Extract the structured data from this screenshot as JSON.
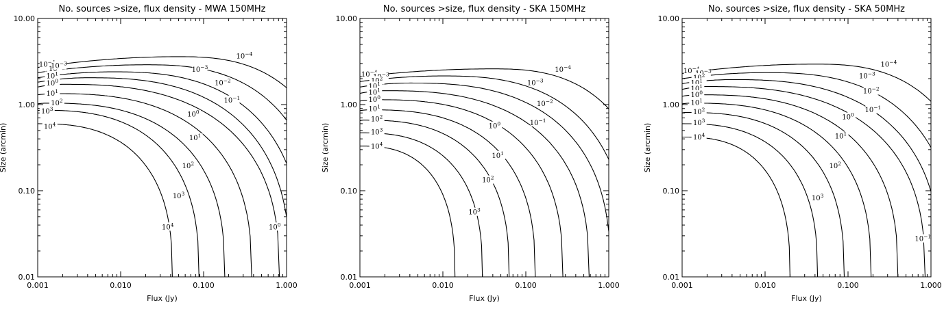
{
  "chart_data": [
    {
      "type": "contour",
      "title": "No. sources >size, flux density - MWA 150MHz",
      "xlabel": "Flux (Jy)",
      "ylabel": "Size (arcmin)",
      "x_scale": "log",
      "y_scale": "log",
      "xlim": [
        0.001,
        1.0
      ],
      "ylim": [
        0.01,
        10.0
      ],
      "x_ticks": [
        "0.001",
        "0.010",
        "0.100",
        "1.000"
      ],
      "y_ticks": [
        "0.01",
        "0.10",
        "1.00",
        "10.00"
      ],
      "contours": [
        {
          "level": "10^4",
          "s_left": 0.6,
          "s_max": 0.6,
          "s_peak": 0.001,
          "s_right": 0.042
        },
        {
          "level": "10^3",
          "s_left": 0.85,
          "s_max": 0.86,
          "s_peak": 0.0011,
          "s_right": 0.088
        },
        {
          "level": "10^2",
          "s_left": 1.02,
          "s_max": 1.04,
          "s_peak": 0.0013,
          "s_right": 0.18
        },
        {
          "level": "10^1",
          "s_left": 1.3,
          "s_max": 1.34,
          "s_peak": 0.0016,
          "s_right": 0.38
        },
        {
          "level": "10^0",
          "s_left": 1.6,
          "s_max": 1.72,
          "s_peak": 0.002,
          "s_right": 0.82
        },
        {
          "level": "10^-1",
          "s_left": 1.82,
          "s_max": 2.05,
          "s_peak": 0.004,
          "s_right": 1.1
        },
        {
          "level": "10^-2",
          "s_left": 2.05,
          "s_max": 2.4,
          "s_peak": 0.008,
          "s_right": 1.6
        },
        {
          "level": "10^-3",
          "s_left": 2.35,
          "s_max": 2.9,
          "s_peak": 0.02,
          "s_right": 2.8
        },
        {
          "level": "10^-4",
          "s_left": 2.7,
          "s_max": 3.6,
          "s_peak": 0.05,
          "s_right": 5.0
        }
      ],
      "contour_labels": [
        {
          "text": "10-4",
          "x": 0.0013,
          "y": 2.85,
          "on": 8
        },
        {
          "text": "102",
          "x": 0.0016,
          "y": 2.55,
          "on": 7
        },
        {
          "text": "10-3",
          "x": 0.0018,
          "y": 2.75,
          "on": 7
        },
        {
          "text": "101",
          "x": 0.0015,
          "y": 2.1,
          "on": 6
        },
        {
          "text": "100",
          "x": 0.0015,
          "y": 1.73,
          "on": 4
        },
        {
          "text": "101",
          "x": 0.0015,
          "y": 1.32,
          "on": 3
        },
        {
          "text": "102",
          "x": 0.0017,
          "y": 1.02,
          "on": 2
        },
        {
          "text": "103",
          "x": 0.0013,
          "y": 0.82,
          "on": 1
        },
        {
          "text": "104",
          "x": 0.0014,
          "y": 0.54,
          "on": 0
        },
        {
          "text": "10-4",
          "x": 0.31,
          "y": 3.55,
          "on": 8
        },
        {
          "text": "10-3",
          "x": 0.09,
          "y": 2.5,
          "on": 7
        },
        {
          "text": "10-2",
          "x": 0.17,
          "y": 1.75,
          "on": 6
        },
        {
          "text": "10-1",
          "x": 0.22,
          "y": 1.1,
          "on": 5
        },
        {
          "text": "100",
          "x": 0.075,
          "y": 0.75,
          "on": 4
        },
        {
          "text": "101",
          "x": 0.079,
          "y": 0.4,
          "on": 3
        },
        {
          "text": "102",
          "x": 0.065,
          "y": 0.19,
          "on": 2
        },
        {
          "text": "103",
          "x": 0.05,
          "y": 0.085,
          "on": 1
        },
        {
          "text": "104",
          "x": 0.037,
          "y": 0.037,
          "on": 0
        },
        {
          "text": "100",
          "x": 0.72,
          "y": 0.037,
          "on": 4
        }
      ]
    },
    {
      "type": "contour",
      "title": "No. sources >size, flux density - SKA 150MHz",
      "xlabel": "Flux (Jy)",
      "ylabel": "Size (arcmin)",
      "x_scale": "log",
      "y_scale": "log",
      "xlim": [
        0.001,
        1.0
      ],
      "ylim": [
        0.01,
        10.0
      ],
      "x_ticks": [
        "0.001",
        "0.010",
        "0.100",
        "1.000"
      ],
      "y_ticks": [
        "0.01",
        "0.10",
        "1.00",
        "10.00"
      ],
      "contours": [
        {
          "level": "10^4",
          "s_left": 0.33,
          "s_max": 0.33,
          "s_peak": 0.001,
          "s_right": 0.014
        },
        {
          "level": "10^3",
          "s_left": 0.47,
          "s_max": 0.47,
          "s_peak": 0.001,
          "s_right": 0.03
        },
        {
          "level": "10^2",
          "s_left": 0.65,
          "s_max": 0.66,
          "s_peak": 0.0011,
          "s_right": 0.063
        },
        {
          "level": "10^1",
          "s_left": 0.85,
          "s_max": 0.87,
          "s_peak": 0.0013,
          "s_right": 0.13
        },
        {
          "level": "10^0",
          "s_left": 1.1,
          "s_max": 1.14,
          "s_peak": 0.0016,
          "s_right": 0.28
        },
        {
          "level": "10^-1",
          "s_left": 1.35,
          "s_max": 1.45,
          "s_peak": 0.002,
          "s_right": 0.58
        },
        {
          "level": "10^-2",
          "s_left": 1.6,
          "s_max": 1.78,
          "s_peak": 0.004,
          "s_right": 1.05
        },
        {
          "level": "10^-3",
          "s_left": 1.85,
          "s_max": 2.15,
          "s_peak": 0.01,
          "s_right": 1.7
        },
        {
          "level": "10^-4",
          "s_left": 2.1,
          "s_max": 2.6,
          "s_peak": 0.04,
          "s_right": 3.5
        }
      ],
      "contour_labels": [
        {
          "text": "10-4",
          "x": 0.0013,
          "y": 2.2,
          "on": 8
        },
        {
          "text": "10-3",
          "x": 0.0018,
          "y": 2.05,
          "on": 7
        },
        {
          "text": "102",
          "x": 0.0016,
          "y": 1.85,
          "on": 7
        },
        {
          "text": "101",
          "x": 0.0015,
          "y": 1.6,
          "on": 6
        },
        {
          "text": "101",
          "x": 0.0015,
          "y": 1.35,
          "on": 5
        },
        {
          "text": "100",
          "x": 0.0015,
          "y": 1.12,
          "on": 4
        },
        {
          "text": "101",
          "x": 0.0015,
          "y": 0.87,
          "on": 3
        },
        {
          "text": "102",
          "x": 0.0016,
          "y": 0.66,
          "on": 2
        },
        {
          "text": "103",
          "x": 0.0016,
          "y": 0.47,
          "on": 1
        },
        {
          "text": "104",
          "x": 0.0016,
          "y": 0.32,
          "on": 0
        },
        {
          "text": "10-4",
          "x": 0.28,
          "y": 2.5,
          "on": 8
        },
        {
          "text": "10-3",
          "x": 0.13,
          "y": 1.75,
          "on": 7
        },
        {
          "text": "10-2",
          "x": 0.17,
          "y": 1.0,
          "on": 6
        },
        {
          "text": "10-1",
          "x": 0.14,
          "y": 0.6,
          "on": 5
        },
        {
          "text": "100",
          "x": 0.042,
          "y": 0.55,
          "on": 4
        },
        {
          "text": "101",
          "x": 0.046,
          "y": 0.25,
          "on": 3
        },
        {
          "text": "102",
          "x": 0.035,
          "y": 0.13,
          "on": 2
        },
        {
          "text": "103",
          "x": 0.024,
          "y": 0.055,
          "on": 1
        }
      ]
    },
    {
      "type": "contour",
      "title": "No. sources >size, flux density - SKA 50MHz",
      "xlabel": "Flux (Jy)",
      "ylabel": "Size (arcmin)",
      "x_scale": "log",
      "y_scale": "log",
      "xlim": [
        0.001,
        1.0
      ],
      "ylim": [
        0.01,
        10.0
      ],
      "x_ticks": [
        "0.001",
        "0.010",
        "0.100",
        "1.000"
      ],
      "y_ticks": [
        "0.01",
        "0.10",
        "1.00",
        "10.00"
      ],
      "contours": [
        {
          "level": "10^4",
          "s_left": 0.42,
          "s_max": 0.42,
          "s_peak": 0.001,
          "s_right": 0.02
        },
        {
          "level": "10^3",
          "s_left": 0.6,
          "s_max": 0.6,
          "s_peak": 0.001,
          "s_right": 0.043
        },
        {
          "level": "10^2",
          "s_left": 0.8,
          "s_max": 0.81,
          "s_peak": 0.0011,
          "s_right": 0.09
        },
        {
          "level": "10^1",
          "s_left": 1.02,
          "s_max": 1.04,
          "s_peak": 0.0013,
          "s_right": 0.19
        },
        {
          "level": "10^0",
          "s_left": 1.25,
          "s_max": 1.3,
          "s_peak": 0.0016,
          "s_right": 0.4
        },
        {
          "level": "10^-1",
          "s_left": 1.5,
          "s_max": 1.62,
          "s_peak": 0.002,
          "s_right": 0.85
        },
        {
          "level": "10^-2",
          "s_left": 1.75,
          "s_max": 1.95,
          "s_peak": 0.004,
          "s_right": 1.3
        },
        {
          "level": "10^-3",
          "s_left": 2.0,
          "s_max": 2.35,
          "s_peak": 0.01,
          "s_right": 2.0
        },
        {
          "level": "10^-4",
          "s_left": 2.3,
          "s_max": 2.95,
          "s_peak": 0.04,
          "s_right": 4.0
        }
      ],
      "contour_labels": [
        {
          "text": "10-4",
          "x": 0.0013,
          "y": 2.4,
          "on": 8
        },
        {
          "text": "10-3",
          "x": 0.0018,
          "y": 2.25,
          "on": 7
        },
        {
          "text": "102",
          "x": 0.0016,
          "y": 2.0,
          "on": 7
        },
        {
          "text": "101",
          "x": 0.0015,
          "y": 1.75,
          "on": 6
        },
        {
          "text": "101",
          "x": 0.0015,
          "y": 1.5,
          "on": 5
        },
        {
          "text": "100",
          "x": 0.0015,
          "y": 1.27,
          "on": 4
        },
        {
          "text": "101",
          "x": 0.0015,
          "y": 1.03,
          "on": 3
        },
        {
          "text": "102",
          "x": 0.0016,
          "y": 0.8,
          "on": 2
        },
        {
          "text": "103",
          "x": 0.0016,
          "y": 0.6,
          "on": 1
        },
        {
          "text": "104",
          "x": 0.0016,
          "y": 0.41,
          "on": 0
        },
        {
          "text": "10-4",
          "x": 0.31,
          "y": 2.85,
          "on": 8
        },
        {
          "text": "10-3",
          "x": 0.17,
          "y": 2.1,
          "on": 7
        },
        {
          "text": "10-2",
          "x": 0.19,
          "y": 1.4,
          "on": 6
        },
        {
          "text": "10-1",
          "x": 0.2,
          "y": 0.85,
          "on": 5
        },
        {
          "text": "100",
          "x": 0.1,
          "y": 0.7,
          "on": 4
        },
        {
          "text": "101",
          "x": 0.082,
          "y": 0.42,
          "on": 3
        },
        {
          "text": "102",
          "x": 0.07,
          "y": 0.19,
          "on": 2
        },
        {
          "text": "103",
          "x": 0.043,
          "y": 0.08,
          "on": 1
        },
        {
          "text": "10-1",
          "x": 0.8,
          "y": 0.027,
          "on": 5
        }
      ]
    }
  ]
}
